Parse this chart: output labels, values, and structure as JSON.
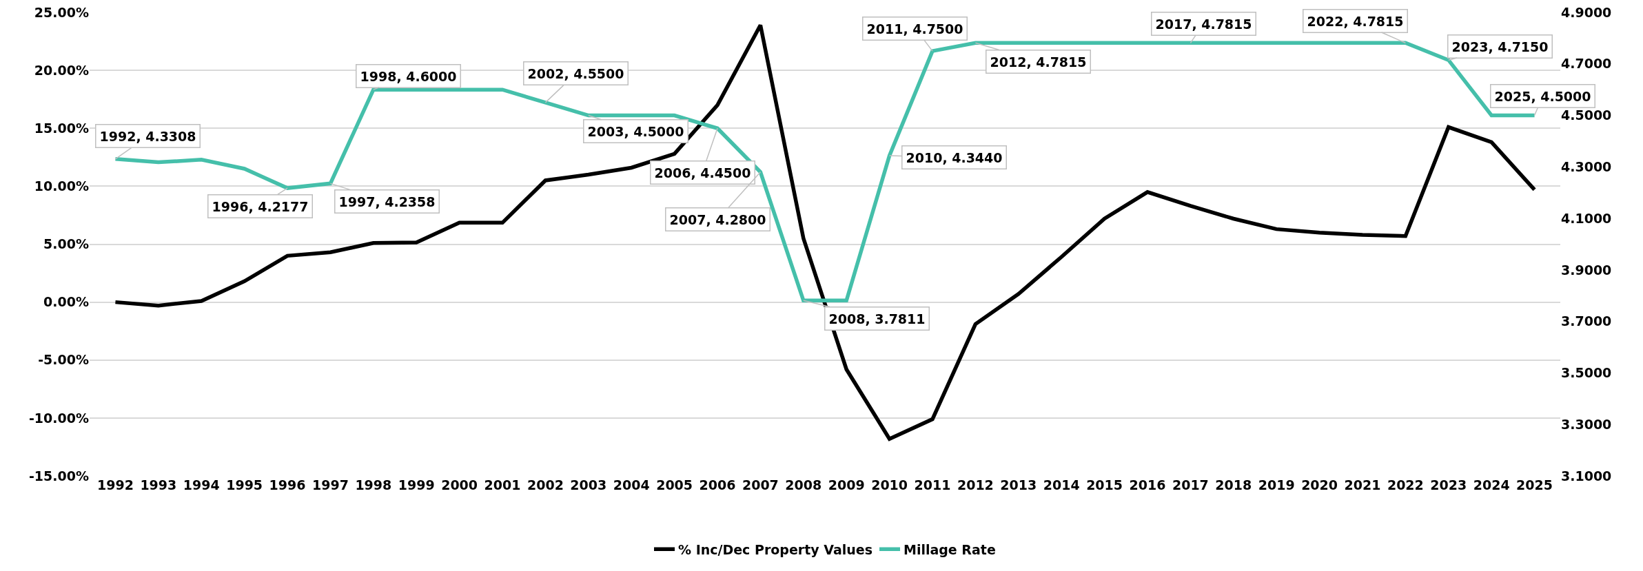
{
  "chart_data": {
    "type": "line",
    "categories": [
      "1992",
      "1993",
      "1994",
      "1995",
      "1996",
      "1997",
      "1998",
      "1999",
      "2000",
      "2001",
      "2002",
      "2003",
      "2004",
      "2005",
      "2006",
      "2007",
      "2008",
      "2009",
      "2010",
      "2011",
      "2012",
      "2013",
      "2014",
      "2015",
      "2016",
      "2017",
      "2018",
      "2019",
      "2020",
      "2021",
      "2022",
      "2023",
      "2024",
      "2025"
    ],
    "ylim": [
      -15,
      25
    ],
    "yticks": [
      {
        "value": -15,
        "label": "-15.00%"
      },
      {
        "value": -10,
        "label": "-10.00%"
      },
      {
        "value": -5,
        "label": "-5.00%"
      },
      {
        "value": 0,
        "label": "0.00%"
      },
      {
        "value": 5,
        "label": "5.00%"
      },
      {
        "value": 10,
        "label": "10.00%"
      },
      {
        "value": 15,
        "label": "15.00%"
      },
      {
        "value": 20,
        "label": "20.00%"
      },
      {
        "value": 25,
        "label": "25.00%"
      }
    ],
    "y2lim": [
      3.1,
      4.9
    ],
    "y2ticks": [
      {
        "value": 3.1,
        "label": "3.1000"
      },
      {
        "value": 3.3,
        "label": "3.3000"
      },
      {
        "value": 3.5,
        "label": "3.5000"
      },
      {
        "value": 3.7,
        "label": "3.7000"
      },
      {
        "value": 3.9,
        "label": "3.9000"
      },
      {
        "value": 4.1,
        "label": "4.1000"
      },
      {
        "value": 4.3,
        "label": "4.3000"
      },
      {
        "value": 4.5,
        "label": "4.5000"
      },
      {
        "value": 4.7,
        "label": "4.7000"
      },
      {
        "value": 4.9,
        "label": "4.9000"
      }
    ],
    "grid": "y",
    "legend": "bottom",
    "series": [
      {
        "name": "% Inc/Dec Property Values",
        "color": "#000000",
        "values": [
          0,
          -0.3,
          0.1,
          1.8,
          4.0,
          4.3,
          5.1,
          5.15,
          6.85,
          6.85,
          10.5,
          11.0,
          11.6,
          12.8,
          17.0,
          23.9,
          5.5,
          -5.8,
          -11.8,
          -10.1,
          -1.9,
          0.7,
          3.9,
          7.2,
          9.5,
          8.3,
          7.2,
          6.3,
          6.0,
          5.8,
          5.7,
          15.1,
          13.8,
          9.7
        ]
      },
      {
        "name": "Millage Rate",
        "color": "#45bfaa",
        "axis": "y2",
        "values": [
          4.3308,
          4.318,
          4.328,
          4.293,
          4.2177,
          4.2358,
          4.6,
          4.6,
          4.6,
          4.6,
          4.55,
          4.5,
          4.5,
          4.5,
          4.45,
          4.28,
          3.7811,
          3.7811,
          4.344,
          4.75,
          4.7815,
          4.7815,
          4.7815,
          4.7815,
          4.7815,
          4.7815,
          4.7815,
          4.7815,
          4.7815,
          4.7815,
          4.7815,
          4.715,
          4.5,
          4.5
        ],
        "value_labels": [
          "1992, 4.3308",
          null,
          null,
          null,
          "1996, 4.2177",
          "1997, 4.2358",
          "1998, 4.6000",
          null,
          null,
          null,
          "2002, 4.5500",
          "2003, 4.5000",
          null,
          null,
          "2006, 4.4500",
          "2007, 4.2800",
          "2008, 3.7811",
          null,
          "2010, 4.3440",
          "2011, 4.7500",
          "2012, 4.7815",
          null,
          null,
          null,
          null,
          "2017, 4.7815",
          null,
          null,
          null,
          null,
          "2022, 4.7815",
          "2023, 4.7150",
          null,
          "2025, 4.5000"
        ]
      }
    ]
  }
}
